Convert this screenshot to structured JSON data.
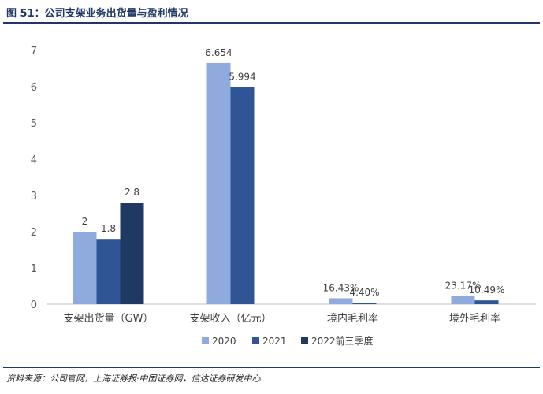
{
  "title": "图 51：公司支架业务出货量与盈利情况",
  "source": "资料来源：公司官网，上海证券报·中国证券网，信达证券研发中心",
  "colors": {
    "s2020": "#8faadc",
    "s2021": "#2f5597",
    "s2022": "#1f3864",
    "axis": "#bfbfbf",
    "title": "#1f3864"
  },
  "chart_data": {
    "type": "bar",
    "categories": [
      "支架出货量（GW）",
      "支架收入（亿元）",
      "境内毛利率",
      "境外毛利率"
    ],
    "series": [
      {
        "name": "2020",
        "values": [
          2,
          6.654,
          0.1643,
          0.2317
        ],
        "labels": [
          "2",
          "6.654",
          "16.43%",
          "23.17%"
        ]
      },
      {
        "name": "2021",
        "values": [
          1.8,
          5.994,
          0.044,
          0.1049
        ],
        "labels": [
          "1.8",
          "5.994",
          "4.40%",
          "10.49%"
        ]
      },
      {
        "name": "2022前三季度",
        "values": [
          2.8,
          null,
          null,
          null
        ],
        "labels": [
          "2.8",
          "",
          "",
          ""
        ]
      }
    ],
    "yticks": [
      "0",
      "1",
      "2",
      "3",
      "4",
      "5",
      "6",
      "7"
    ],
    "ylim": [
      0,
      7
    ],
    "grid": false,
    "legend": "bottom"
  }
}
